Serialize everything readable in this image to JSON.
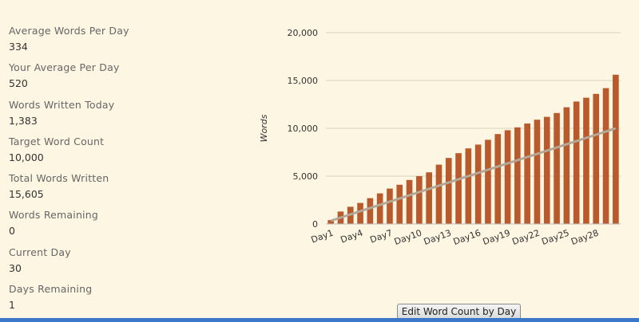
{
  "stats": [
    {
      "label": "Average Words Per Day",
      "value": "334"
    },
    {
      "label": "Your Average Per Day",
      "value": "520"
    },
    {
      "label": "Words Written Today",
      "value": "1,383"
    },
    {
      "label": "Target Word Count",
      "value": "10,000"
    },
    {
      "label": "Total Words Written",
      "value": "15,605"
    },
    {
      "label": "Words Remaining",
      "value": "0"
    },
    {
      "label": "Current Day",
      "value": "30"
    },
    {
      "label": "Days Remaining",
      "value": "1"
    }
  ],
  "edit_button_label": "Edit Word Count by Day",
  "chart_data": {
    "type": "bar",
    "ylabel": "Words",
    "ylim": [
      0,
      20000
    ],
    "yticks": [
      "0",
      "5,000",
      "10,000",
      "15,000",
      "20,000"
    ],
    "x_labels": [
      "Day1",
      "Day4",
      "Day7",
      "Day10",
      "Day13",
      "Day16",
      "Day19",
      "Day22",
      "Day25",
      "Day28"
    ],
    "categories": [
      "Day1",
      "Day2",
      "Day3",
      "Day4",
      "Day5",
      "Day6",
      "Day7",
      "Day8",
      "Day9",
      "Day10",
      "Day11",
      "Day12",
      "Day13",
      "Day14",
      "Day15",
      "Day16",
      "Day17",
      "Day18",
      "Day19",
      "Day20",
      "Day21",
      "Day22",
      "Day23",
      "Day24",
      "Day25",
      "Day26",
      "Day27",
      "Day28",
      "Day29",
      "Day30"
    ],
    "series": [
      {
        "values": [
          400,
          1300,
          1800,
          2200,
          2700,
          3200,
          3700,
          4100,
          4600,
          5000,
          5400,
          6200,
          6900,
          7400,
          7900,
          8300,
          8800,
          9400,
          9800,
          10100,
          10500,
          10900,
          11200,
          11600,
          12200,
          12800,
          13200,
          13600,
          14200,
          15605
        ]
      }
    ],
    "target_line": [
      333,
      10000
    ],
    "colors": {
      "bar": "#b85a2b",
      "target_line": "#b3a898",
      "grid": "#d9d2bf",
      "axis_text": "#333333"
    }
  }
}
